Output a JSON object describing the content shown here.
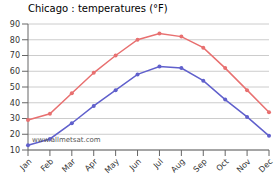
{
  "chart_data": {
    "type": "line",
    "title": "Chicago : temperatures (°F)",
    "annotation": "www.allmetsat.com",
    "categories": [
      "Jan",
      "Feb",
      "Mar",
      "Apr",
      "May",
      "Jun",
      "Jul",
      "Aug",
      "Sep",
      "Oct",
      "Nov",
      "Dec"
    ],
    "series": [
      {
        "color": "#e87070",
        "marker": "circle",
        "values": [
          29,
          33,
          46,
          59,
          70,
          80,
          84,
          82,
          75,
          62,
          48,
          34
        ]
      },
      {
        "color": "#6060cc",
        "marker": "circle",
        "values": [
          13,
          17,
          27,
          38,
          48,
          58,
          63,
          62,
          54,
          42,
          31,
          19
        ]
      }
    ],
    "ylim": [
      10,
      90
    ],
    "yticks": [
      10,
      20,
      30,
      40,
      50,
      60,
      70,
      80,
      90
    ],
    "grid": true
  }
}
